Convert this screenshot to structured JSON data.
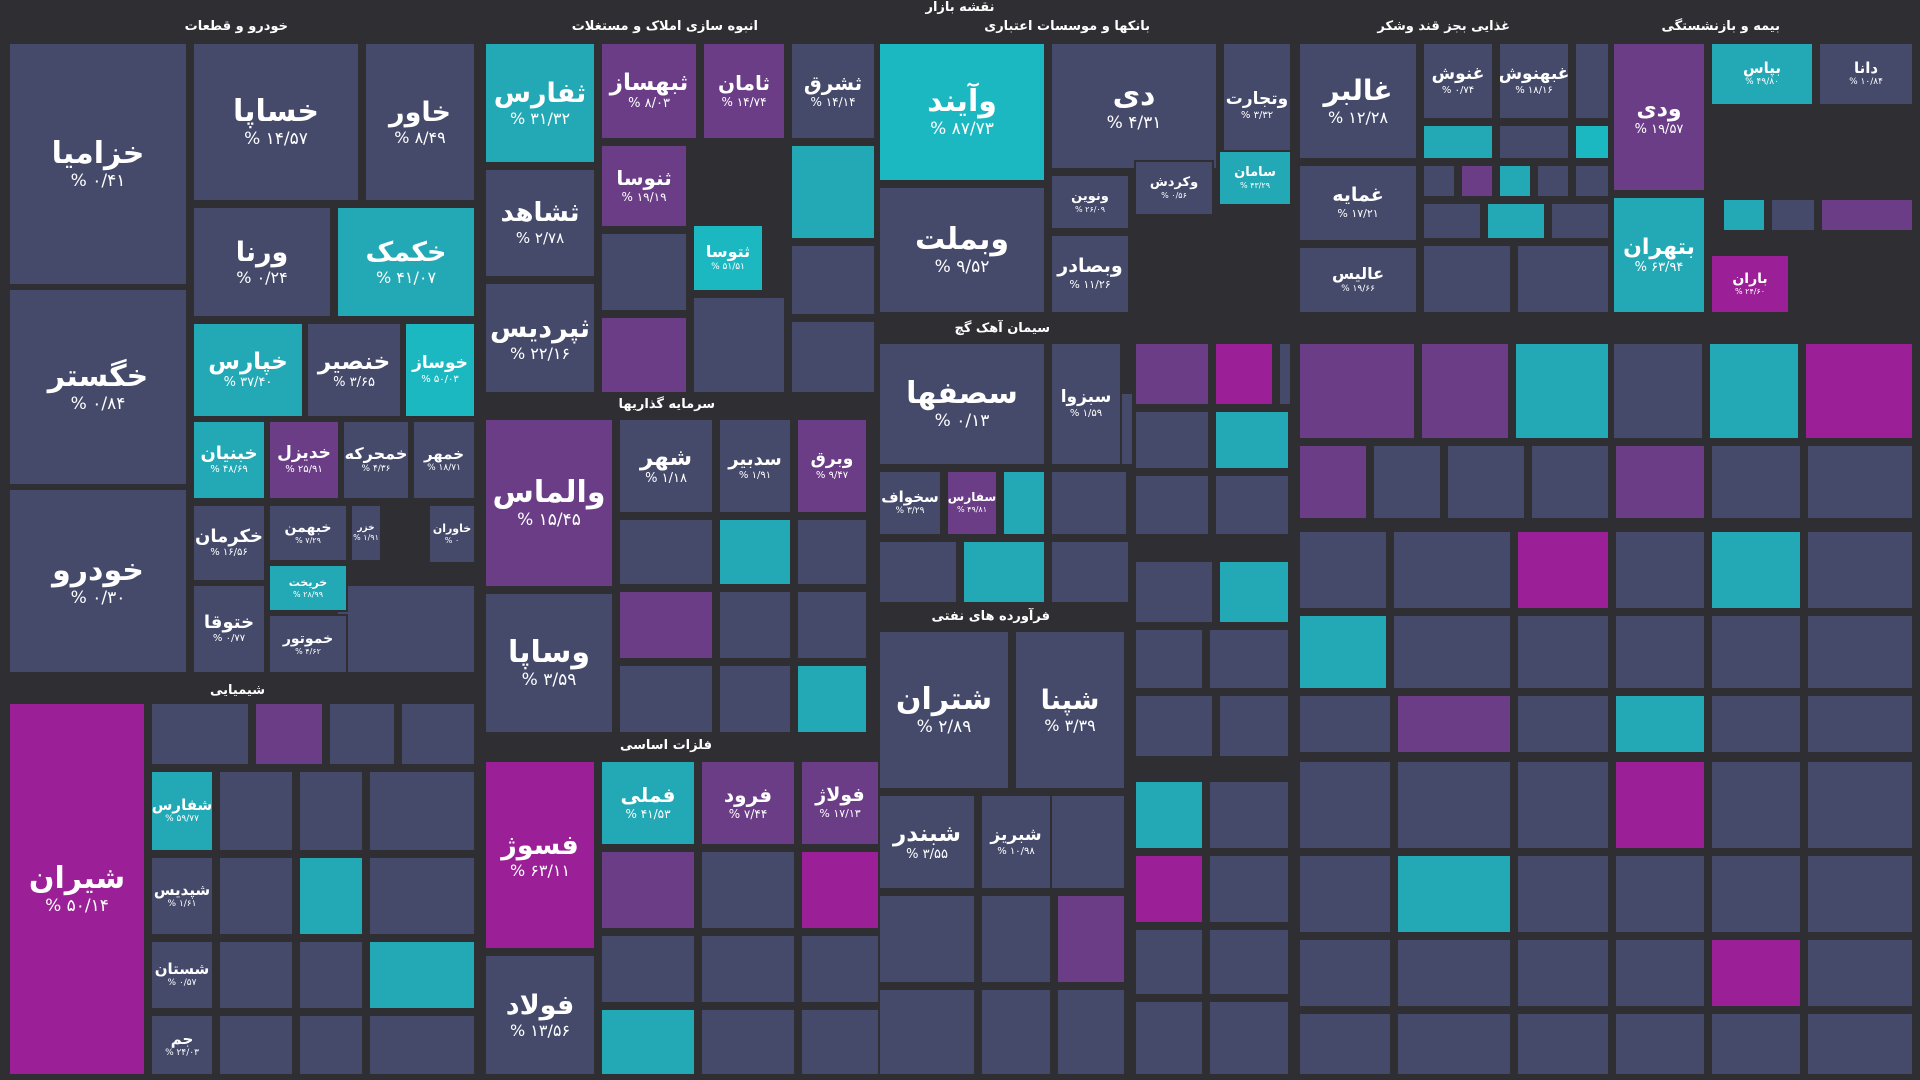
{
  "title": "نقشه بازار",
  "colors": {
    "d": "#454a6b",
    "t": "#22a9b5",
    "T": "#1cb8c2",
    "p": "#6a3d86",
    "m": "#9b1f96"
  },
  "sectors": [
    {
      "label": "خودرو و قطعات",
      "tiles": [
        {
          "sym": "خزامیا",
          "chg": "۰/۴۱ %",
          "c": "d"
        },
        {
          "sym": "خگستر",
          "chg": "۰/۸۴ %",
          "c": "d"
        },
        {
          "sym": "خودرو",
          "chg": "۰/۳۰ %",
          "c": "d"
        },
        {
          "sym": "خساپا",
          "chg": "۱۴/۵۷ %",
          "c": "d"
        },
        {
          "sym": "خاور",
          "chg": "۸/۴۹ %",
          "c": "d"
        },
        {
          "sym": "ورنا",
          "chg": "۰/۲۴ %",
          "c": "d"
        },
        {
          "sym": "خکمک",
          "chg": "۴۱/۰۷ %",
          "c": "t"
        },
        {
          "sym": "خپارس",
          "chg": "۳۷/۴۰ %",
          "c": "t"
        },
        {
          "sym": "خنصیر",
          "chg": "۳/۶۵ %",
          "c": "d"
        },
        {
          "sym": "خوساز",
          "chg": "۵۰/۰۳ %",
          "c": "T"
        },
        {
          "sym": "خبنیان",
          "chg": "۴۸/۶۹ %",
          "c": "t"
        },
        {
          "sym": "خدیزل",
          "chg": "۲۵/۹۱ %",
          "c": "p"
        },
        {
          "sym": "خمحرکه",
          "chg": "۴/۳۶ %",
          "c": "d"
        },
        {
          "sym": "خمهر",
          "chg": "۱۸/۷۱ %",
          "c": "d"
        },
        {
          "sym": "خکرمان",
          "chg": "۱۶/۵۶ %",
          "c": "d"
        },
        {
          "sym": "خبهمن",
          "chg": "۷/۲۹ %",
          "c": "d"
        },
        {
          "sym": "خزر",
          "chg": "۱/۹۱ %",
          "c": "d"
        },
        {
          "sym": "ختوقا",
          "chg": "۰/۷۷ %",
          "c": "d"
        },
        {
          "sym": "خریخت",
          "chg": "۲۸/۹۹ %",
          "c": "t"
        },
        {
          "sym": "خموتور",
          "chg": "۴/۶۲ %",
          "c": "d"
        },
        {
          "sym": "خاوران",
          "chg": "۰ %",
          "c": "d"
        }
      ]
    },
    {
      "label": "انبوه سازی املاک و مستغلات",
      "tiles": [
        {
          "sym": "ثفارس",
          "chg": "۳۱/۳۲ %",
          "c": "t"
        },
        {
          "sym": "ثشاهد",
          "chg": "۲/۷۸ %",
          "c": "d"
        },
        {
          "sym": "ثپردیس",
          "chg": "۲۲/۱۶ %",
          "c": "d"
        },
        {
          "sym": "ثبهساز",
          "chg": "۸/۰۳ %",
          "c": "p"
        },
        {
          "sym": "ثامان",
          "chg": "۱۴/۷۴ %",
          "c": "p"
        },
        {
          "sym": "ثشرق",
          "chg": "۱۴/۱۴ %",
          "c": "d"
        },
        {
          "sym": "ثنوسا",
          "chg": "۱۹/۱۹ %",
          "c": "p"
        },
        {
          "sym": "ثتوسا",
          "chg": "۵۱/۵۱ %",
          "c": "T"
        }
      ]
    },
    {
      "label": "بانکها و موسسات اعتباری",
      "tiles": [
        {
          "sym": "وآیند",
          "chg": "۸۷/۷۳ %",
          "c": "T"
        },
        {
          "sym": "وبملت",
          "chg": "۹/۵۲ %",
          "c": "d"
        },
        {
          "sym": "دی",
          "chg": "۴/۳۱ %",
          "c": "d"
        },
        {
          "sym": "وتجارت",
          "chg": "۳/۳۲ %",
          "c": "d"
        },
        {
          "sym": "ونوین",
          "chg": "۲۶/۰۹ %",
          "c": "d"
        },
        {
          "sym": "وکردش",
          "chg": "۰/۵۶ %",
          "c": "d"
        },
        {
          "sym": "سامان",
          "chg": "۴۳/۲۹ %",
          "c": "t"
        },
        {
          "sym": "وبصادر",
          "chg": "۱۱/۲۶ %",
          "c": "d"
        }
      ]
    },
    {
      "label": "غذایی بجز قند وشکر",
      "tiles": [
        {
          "sym": "غالبر",
          "chg": "۱۲/۲۸ %",
          "c": "d"
        },
        {
          "sym": "غنوش",
          "chg": "۰/۷۴ %",
          "c": "d"
        },
        {
          "sym": "غبهنوش",
          "chg": "۱۸/۱۶ %",
          "c": "d"
        },
        {
          "sym": "غمایه",
          "chg": "۱۷/۲۱ %",
          "c": "d"
        },
        {
          "sym": "عالیس",
          "chg": "۱۹/۶۶ %",
          "c": "d"
        }
      ]
    },
    {
      "label": "بیمه و بازنشستگی",
      "tiles": [
        {
          "sym": "ودی",
          "chg": "۱۹/۵۷ %",
          "c": "p"
        },
        {
          "sym": "بپاس",
          "chg": "۴۹/۸۰ %",
          "c": "t"
        },
        {
          "sym": "دانا",
          "chg": "۱۰/۸۴ %",
          "c": "d"
        },
        {
          "sym": "بتهران",
          "chg": "۶۳/۹۴ %",
          "c": "t"
        },
        {
          "sym": "باران",
          "chg": "۲۴/۶۰ %",
          "c": "m"
        }
      ]
    },
    {
      "label": "شیمیایی",
      "tiles": [
        {
          "sym": "شیران",
          "chg": "۵۰/۱۴ %",
          "c": "m"
        },
        {
          "sym": "شفارس",
          "chg": "۵۹/۷۷ %",
          "c": "t"
        },
        {
          "sym": "شپدیس",
          "chg": "۱/۶۱ %",
          "c": "d"
        },
        {
          "sym": "شستان",
          "chg": "۰/۵۷ %",
          "c": "d"
        },
        {
          "sym": "جم",
          "chg": "۲۴/۰۳ %",
          "c": "d"
        }
      ]
    },
    {
      "label": "فلزات اساسی",
      "tiles": [
        {
          "sym": "فسوژ",
          "chg": "۶۳/۱۱ %",
          "c": "m"
        },
        {
          "sym": "فولاد",
          "chg": "۱۳/۵۶ %",
          "c": "d"
        },
        {
          "sym": "فملی",
          "chg": "۴۱/۵۳ %",
          "c": "t"
        },
        {
          "sym": "فرود",
          "chg": "۷/۴۴ %",
          "c": "p"
        },
        {
          "sym": "فولاژ",
          "chg": "۱۷/۱۳ %",
          "c": "p"
        }
      ]
    },
    {
      "label": "فرآورده های نفتی",
      "tiles": [
        {
          "sym": "شتران",
          "chg": "۲/۸۹ %",
          "c": "d"
        },
        {
          "sym": "شپنا",
          "chg": "۳/۳۹ %",
          "c": "d"
        },
        {
          "sym": "شبندر",
          "chg": "۳/۵۵ %",
          "c": "d"
        },
        {
          "sym": "شبریز",
          "chg": "۱۰/۹۸ %",
          "c": "d"
        }
      ]
    },
    {
      "label": "سیمان آهک گچ",
      "tiles": [
        {
          "sym": "سصفها",
          "chg": "۰/۱۳ %",
          "c": "d"
        },
        {
          "sym": "سبزوا",
          "chg": "۱/۵۹ %",
          "c": "d"
        },
        {
          "sym": "سخواف",
          "chg": "۳/۲۹ %",
          "c": "d"
        },
        {
          "sym": "سفارس",
          "chg": "۴۹/۸۱ %",
          "c": "p"
        }
      ]
    },
    {
      "label": "سرمایه گذاریها",
      "tiles": [
        {
          "sym": "والماس",
          "chg": "۱۵/۴۵ %",
          "c": "p"
        },
        {
          "sym": "وساپا",
          "chg": "۳/۵۹ %",
          "c": "d"
        },
        {
          "sym": "شهر",
          "chg": "۱/۱۸ %",
          "c": "d"
        },
        {
          "sym": "سدبیر",
          "chg": "۱/۹۱ %",
          "c": "d"
        },
        {
          "sym": "وبرق",
          "chg": "۹/۴۷ %",
          "c": "p"
        }
      ]
    }
  ]
}
